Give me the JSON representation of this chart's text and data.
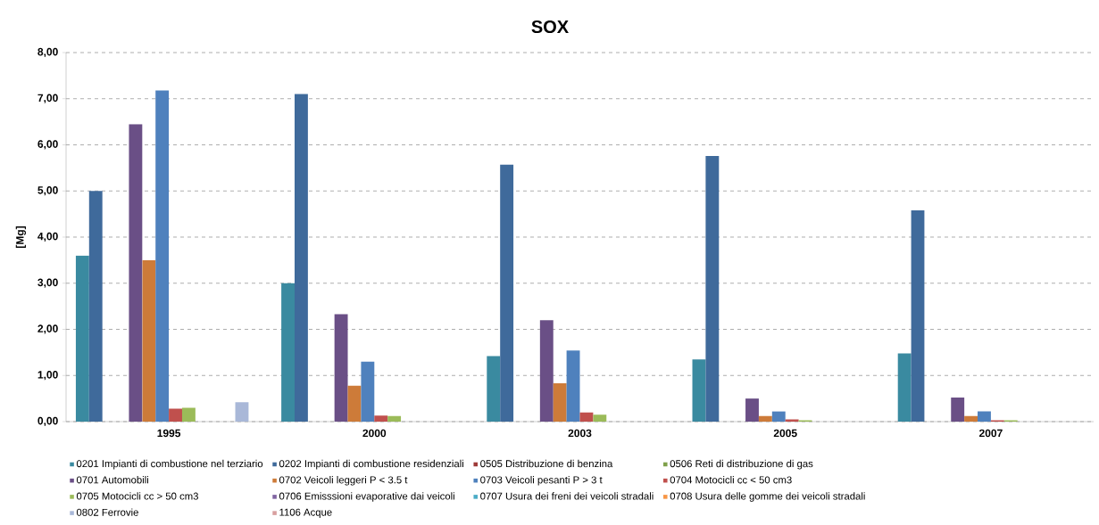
{
  "chart_data": {
    "type": "bar",
    "title": "SOX",
    "ylabel": "[Mg]",
    "categories": [
      "1995",
      "2000",
      "2003",
      "2005",
      "2007"
    ],
    "series": [
      {
        "name": "0201  Impianti di combustione nel terziario",
        "color": "#3a8aa0",
        "values": [
          3.6,
          3.0,
          1.42,
          1.35,
          1.48
        ]
      },
      {
        "name": "0202  Impianti di combustione residenziali",
        "color": "#3f6a9b",
        "values": [
          5.0,
          7.1,
          5.57,
          5.76,
          4.58
        ]
      },
      {
        "name": "0505  Distribuzione di benzina",
        "color": "#9e3a38",
        "values": [
          0,
          0,
          0,
          0,
          0
        ]
      },
      {
        "name": "0506  Reti di distribuzione di gas",
        "color": "#7fa04a",
        "values": [
          0,
          0,
          0,
          0,
          0
        ]
      },
      {
        "name": "0701  Automobili",
        "color": "#6a4f86",
        "values": [
          6.45,
          2.33,
          2.2,
          0.5,
          0.52
        ]
      },
      {
        "name": "0702  Veicoli leggeri P < 3.5 t",
        "color": "#cd7b39",
        "values": [
          3.5,
          0.78,
          0.83,
          0.12,
          0.12
        ]
      },
      {
        "name": "0703  Veicoli pesanti P > 3 t",
        "color": "#4f81bd",
        "values": [
          7.18,
          1.3,
          1.54,
          0.22,
          0.22
        ]
      },
      {
        "name": "0704  Motocicli cc < 50 cm3",
        "color": "#c0504d",
        "values": [
          0.28,
          0.13,
          0.2,
          0.05,
          0.03
        ]
      },
      {
        "name": "0705  Motocicli cc > 50 cm3",
        "color": "#9bbb59",
        "values": [
          0.3,
          0.12,
          0.15,
          0.03,
          0.03
        ]
      },
      {
        "name": "0706  Emisssioni evaporative dai veicoli",
        "color": "#8064a2",
        "values": [
          0,
          0,
          0,
          0,
          0
        ]
      },
      {
        "name": "0707  Usura dei freni dei veicoli stradali",
        "color": "#4bacc6",
        "values": [
          0,
          0,
          0,
          0,
          0
        ]
      },
      {
        "name": "0708  Usura delle gomme dei veicoli stradali",
        "color": "#f79646",
        "values": [
          0,
          0,
          0,
          0,
          0
        ]
      },
      {
        "name": "0802  Ferrovie",
        "color": "#a9b8d8",
        "values": [
          0.42,
          0,
          null,
          0,
          0
        ]
      },
      {
        "name": "1106  Acque",
        "color": "#d8a0a0",
        "values": [
          0,
          0,
          0,
          0,
          0
        ]
      }
    ],
    "ylim": [
      0,
      8
    ],
    "yticks": [
      {
        "value": 0,
        "label": "0,00"
      },
      {
        "value": 1,
        "label": "1,00"
      },
      {
        "value": 2,
        "label": "2,00"
      },
      {
        "value": 3,
        "label": "3,00"
      },
      {
        "value": 4,
        "label": "4,00"
      },
      {
        "value": 5,
        "label": "5,00"
      },
      {
        "value": 6,
        "label": "6,00"
      },
      {
        "value": 7,
        "label": "7,00"
      },
      {
        "value": 8,
        "label": "8,00"
      }
    ],
    "grid": "y",
    "legend": "bottom"
  }
}
